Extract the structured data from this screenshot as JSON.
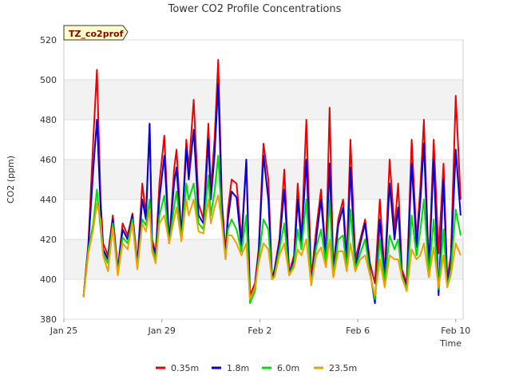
{
  "chart_data": {
    "type": "line",
    "title": "Tower CO2 Profile Concentrations",
    "xlabel": "Time",
    "ylabel": "CO2 (ppm)",
    "badge": "TZ_co2prof",
    "xlim": [
      0,
      16.3
    ],
    "ylim": [
      380,
      520
    ],
    "x_ticks": [
      {
        "value": 0,
        "label": "Jan 25"
      },
      {
        "value": 4,
        "label": "Jan 29"
      },
      {
        "value": 8,
        "label": "Feb 2"
      },
      {
        "value": 12,
        "label": "Feb 6"
      },
      {
        "value": 16,
        "label": "Feb 10"
      }
    ],
    "y_ticks": [
      380,
      400,
      420,
      440,
      460,
      480,
      500,
      520
    ],
    "legend_position": "bottom-center",
    "colors": {
      "red": "#ee0000",
      "blue": "#0000dd",
      "green": "#00dd00",
      "orange": "#f0a000",
      "band": "#f2f2f2",
      "grid": "#dddddd",
      "badge_fill": "#ffffc8"
    },
    "x": [
      0.8,
      1.0,
      1.2,
      1.35,
      1.5,
      1.6,
      1.8,
      2.0,
      2.2,
      2.4,
      2.6,
      2.8,
      3.0,
      3.2,
      3.35,
      3.5,
      3.6,
      3.75,
      3.9,
      4.1,
      4.3,
      4.5,
      4.6,
      4.8,
      5.0,
      5.1,
      5.3,
      5.5,
      5.7,
      5.9,
      6.0,
      6.15,
      6.3,
      6.45,
      6.6,
      6.7,
      6.85,
      7.05,
      7.25,
      7.45,
      7.6,
      7.8,
      7.95,
      8.15,
      8.35,
      8.5,
      8.6,
      8.8,
      9.0,
      9.2,
      9.4,
      9.55,
      9.7,
      9.9,
      10.1,
      10.3,
      10.5,
      10.7,
      10.85,
      11.0,
      11.2,
      11.4,
      11.55,
      11.7,
      11.9,
      12.1,
      12.3,
      12.5,
      12.7,
      12.9,
      13.1,
      13.3,
      13.5,
      13.65,
      13.8,
      14.0,
      14.2,
      14.4,
      14.55,
      14.7,
      14.9,
      15.1,
      15.3,
      15.5,
      15.65,
      15.8,
      16.0,
      16.2
    ],
    "series": [
      {
        "name": "0.35m",
        "color": "#ee0000",
        "values": [
          391,
          418,
          470,
          505,
          440,
          418,
          412,
          432,
          405,
          428,
          422,
          433,
          408,
          448,
          432,
          478,
          420,
          413,
          448,
          472,
          418,
          455,
          465,
          422,
          470,
          455,
          490,
          438,
          430,
          478,
          445,
          470,
          510,
          440,
          413,
          435,
          450,
          448,
          420,
          460,
          392,
          398,
          415,
          468,
          450,
          400,
          405,
          420,
          455,
          403,
          412,
          448,
          420,
          480,
          400,
          425,
          445,
          412,
          486,
          405,
          430,
          440,
          410,
          470,
          410,
          420,
          430,
          408,
          398,
          440,
          402,
          460,
          425,
          448,
          405,
          398,
          470,
          420,
          445,
          480,
          405,
          470,
          413,
          458,
          400,
          412,
          492,
          440
        ]
      },
      {
        "name": "1.8m",
        "color": "#0000dd",
        "values": [
          391,
          417,
          455,
          480,
          436,
          415,
          410,
          430,
          404,
          425,
          420,
          432,
          407,
          440,
          430,
          478,
          418,
          412,
          440,
          462,
          418,
          448,
          456,
          421,
          466,
          450,
          475,
          432,
          428,
          470,
          440,
          462,
          498,
          435,
          411,
          430,
          444,
          441,
          416,
          460,
          390,
          396,
          412,
          462,
          440,
          400,
          404,
          418,
          445,
          402,
          410,
          440,
          418,
          460,
          398,
          420,
          440,
          410,
          458,
          403,
          427,
          436,
          407,
          456,
          406,
          418,
          428,
          404,
          388,
          430,
          400,
          448,
          420,
          436,
          403,
          396,
          458,
          416,
          438,
          468,
          404,
          460,
          392,
          450,
          397,
          408,
          465,
          432
        ]
      },
      {
        "name": "6.0m",
        "color": "#00dd00",
        "values": [
          391,
          415,
          428,
          445,
          425,
          413,
          408,
          428,
          403,
          421,
          418,
          430,
          406,
          430,
          427,
          440,
          416,
          410,
          432,
          442,
          418,
          436,
          444,
          420,
          448,
          440,
          448,
          428,
          425,
          452,
          432,
          444,
          462,
          430,
          410,
          425,
          430,
          425,
          414,
          432,
          388,
          394,
          410,
          430,
          425,
          400,
          402,
          415,
          428,
          402,
          408,
          425,
          415,
          440,
          397,
          416,
          425,
          408,
          440,
          402,
          420,
          422,
          405,
          435,
          405,
          413,
          420,
          403,
          390,
          420,
          398,
          422,
          415,
          420,
          402,
          395,
          432,
          412,
          424,
          440,
          402,
          430,
          395,
          425,
          396,
          405,
          435,
          422
        ]
      },
      {
        "name": "23.5m",
        "color": "#f0a000",
        "values": [
          391,
          413,
          425,
          438,
          430,
          412,
          404,
          426,
          402,
          418,
          415,
          428,
          405,
          428,
          424,
          435,
          414,
          408,
          428,
          432,
          418,
          430,
          436,
          419,
          440,
          432,
          440,
          424,
          423,
          440,
          428,
          436,
          442,
          428,
          410,
          422,
          422,
          418,
          412,
          418,
          390,
          396,
          408,
          418,
          415,
          400,
          401,
          412,
          418,
          402,
          406,
          415,
          412,
          420,
          397,
          412,
          416,
          406,
          420,
          401,
          414,
          414,
          404,
          418,
          404,
          410,
          412,
          402,
          392,
          410,
          396,
          412,
          410,
          410,
          401,
          394,
          415,
          410,
          412,
          418,
          401,
          416,
          396,
          412,
          396,
          402,
          418,
          412
        ]
      }
    ]
  }
}
